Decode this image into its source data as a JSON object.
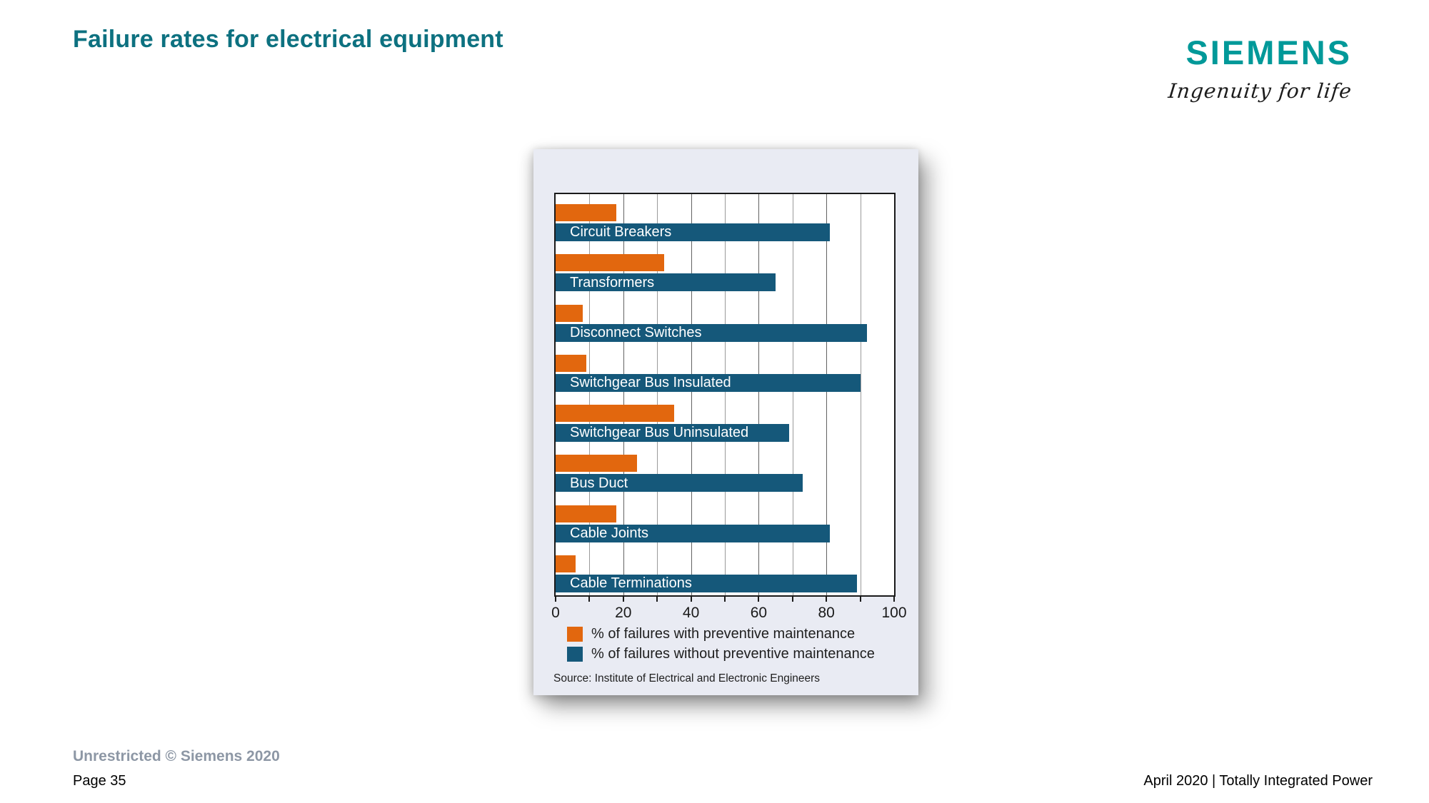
{
  "page": {
    "title": "Failure rates for electrical equipment",
    "brand": {
      "logo": "SIEMENS",
      "tagline": "Ingenuity for life",
      "logo_color": "#009999"
    },
    "footer": {
      "classification": "Unrestricted © Siemens 2020",
      "page": "Page 35",
      "right": "April 2020 | Totally Integrated Power"
    }
  },
  "chart_data": {
    "type": "bar",
    "orientation": "horizontal",
    "title": "",
    "categories": [
      "Circuit Breakers",
      "Transformers",
      "Disconnect Switches",
      "Switchgear Bus Insulated",
      "Switchgear Bus Uninsulated",
      "Bus Duct",
      "Cable Joints",
      "Cable Terminations"
    ],
    "series": [
      {
        "name": "% of failures with preventive maintenance",
        "color": "#e2670e",
        "values": [
          18,
          32,
          8,
          9,
          35,
          24,
          18,
          6
        ]
      },
      {
        "name": "% of failures without preventive maintenance",
        "color": "#15587a",
        "values": [
          81,
          65,
          92,
          90,
          69,
          73,
          81,
          89
        ]
      }
    ],
    "xlim": [
      0,
      100
    ],
    "xticks": [
      0,
      20,
      40,
      60,
      80,
      100
    ],
    "gridlines_every": 10,
    "grid": "vertical",
    "legend_position": "bottom-left",
    "source": "Source: Institute of Electrical and Electronic Engineers",
    "panel_background": "#e9ebf3",
    "plot_background": "#ffffff",
    "bar_label_color": "#ffffff"
  }
}
